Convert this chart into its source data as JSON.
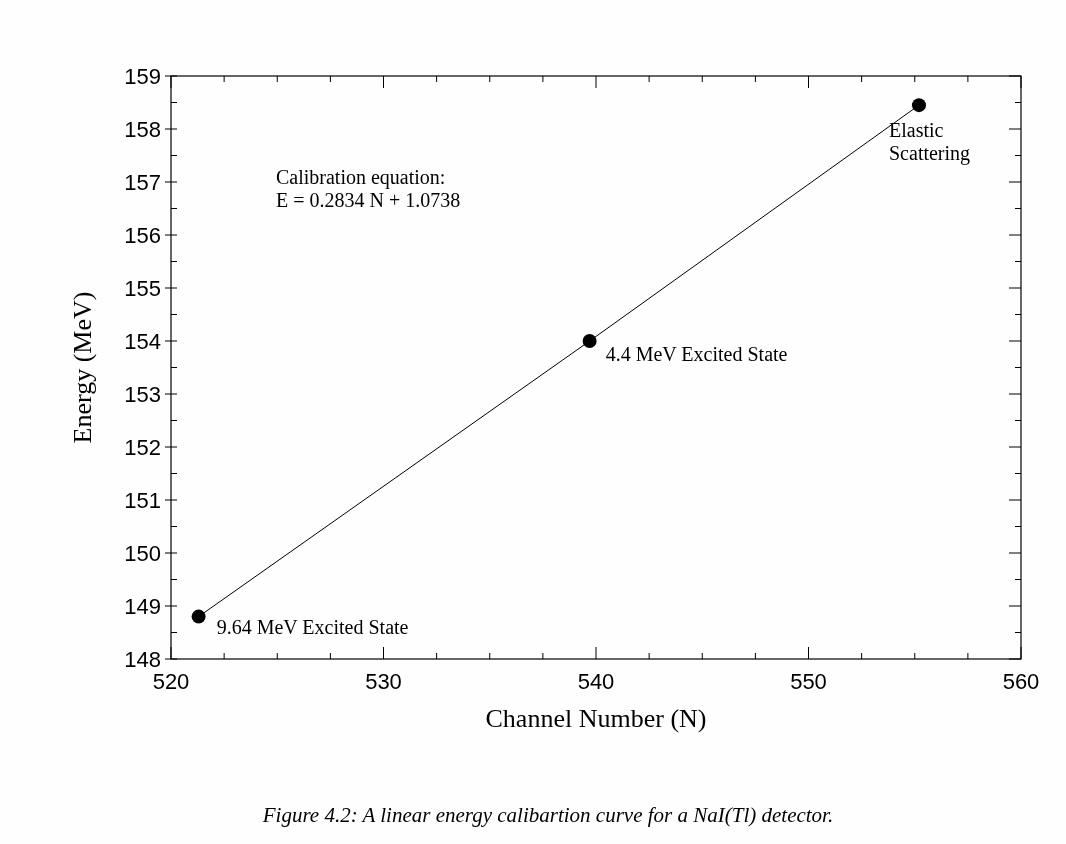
{
  "chart_data": {
    "type": "line",
    "xlabel": "Channel Number (N)",
    "ylabel": "Energy (MeV)",
    "x": [
      521.3,
      539.7,
      555.2
    ],
    "series": [
      {
        "color": "#000000",
        "values": [
          148.8,
          154.0,
          158.45
        ]
      }
    ],
    "xlim": [
      520,
      560
    ],
    "xticks": [
      520,
      530,
      540,
      550,
      560
    ],
    "ylim": [
      148,
      159
    ],
    "yticks": [
      148,
      149,
      150,
      151,
      152,
      153,
      154,
      155,
      156,
      157,
      158,
      159
    ],
    "marker": "circle",
    "line_style": "solid",
    "grid": false,
    "legend": false,
    "annotations": [
      {
        "text": "9.64 MeV Excited State",
        "x": 521.3,
        "y": 148.8
      },
      {
        "text": "4.4 MeV Excited State",
        "x": 539.7,
        "y": 154.0
      },
      {
        "text": "Elastic Scattering",
        "x": 555.2,
        "y": 158.45
      },
      "Calibration equation:\nE = 0.2834 N + 1.0738",
      "Figure 4.2: A linear energy calibartion curve for a NaI(Tl) detector."
    ]
  }
}
